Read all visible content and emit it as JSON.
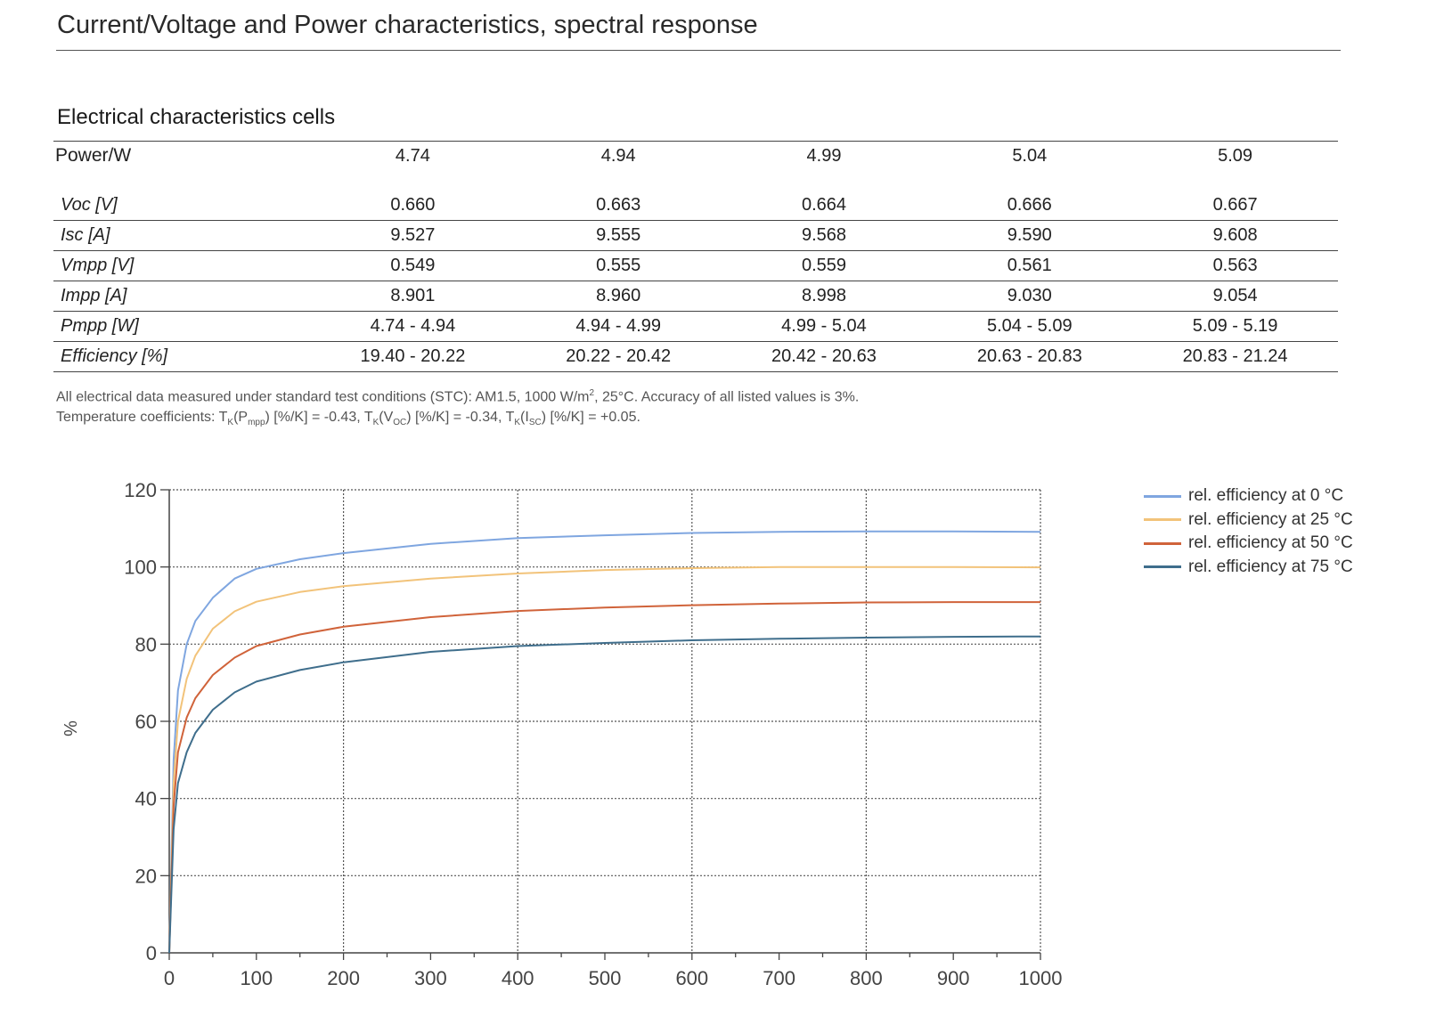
{
  "document": {
    "title": "Current/Voltage and Power characteristics, spectral response",
    "table_title": "Electrical characteristics cells"
  },
  "table": {
    "power_label": "Power/W",
    "power_values": [
      "4.74",
      "4.94",
      "4.99",
      "5.04",
      "5.09"
    ],
    "rows": [
      {
        "label": "Voc [V]",
        "values": [
          "0.660",
          "0.663",
          "0.664",
          "0.666",
          "0.667"
        ]
      },
      {
        "label": "Isc [A]",
        "values": [
          "9.527",
          "9.555",
          "9.568",
          "9.590",
          "9.608"
        ]
      },
      {
        "label": "Vmpp [V]",
        "values": [
          "0.549",
          "0.555",
          "0.559",
          "0.561",
          "0.563"
        ]
      },
      {
        "label": "Impp [A]",
        "values": [
          "8.901",
          "8.960",
          "8.998",
          "9.030",
          "9.054"
        ]
      },
      {
        "label": "Pmpp [W]",
        "values": [
          "4.74 - 4.94",
          "4.94 - 4.99",
          "4.99 - 5.04",
          "5.04 - 5.09",
          "5.09 - 5.19"
        ]
      },
      {
        "label": "Efficiency [%]",
        "values": [
          "19.40 - 20.22",
          "20.22 - 20.42",
          "20.42 - 20.63",
          "20.63 - 20.83",
          "20.83 - 21.24"
        ]
      }
    ]
  },
  "notes": {
    "stc_prefix": "All electrical data measured under standard test conditions (STC): AM1.5, 1000 W/m",
    "stc_sup": "2",
    "stc_suffix": ", 25°C. Accuracy  of all listed values is 3%.",
    "tc_prefix": "Temperature coefficients: T",
    "tc_k": "K",
    "tc_pmpp_a": "(P",
    "tc_pmpp_sub": "mpp",
    "tc_pmpp_b": ") [%/K] = -0.43, T",
    "tc_voc_a": "(V",
    "tc_voc_sub": "OC",
    "tc_voc_b": ") [%/K] = -0.34, T",
    "tc_isc_a": "(I",
    "tc_isc_sub": "SC",
    "tc_isc_b": ") [%/K] = +0.05."
  },
  "chart_data": {
    "type": "line",
    "ylabel": "%",
    "xlabel": "",
    "xlim": [
      0,
      1000
    ],
    "ylim": [
      0,
      120
    ],
    "x_ticks": [
      0,
      100,
      200,
      300,
      400,
      500,
      600,
      700,
      800,
      900,
      1000
    ],
    "y_ticks": [
      0,
      20,
      40,
      60,
      80,
      100,
      120
    ],
    "grid": true,
    "legend_position": "top-right outside",
    "series": [
      {
        "name": "rel. efficiency at 0 °C",
        "color": "#7fa6e0",
        "x": [
          0,
          5,
          10,
          20,
          30,
          50,
          75,
          100,
          150,
          200,
          300,
          400,
          500,
          600,
          700,
          800,
          900,
          1000
        ],
        "values": [
          0,
          50,
          68,
          80,
          86,
          92,
          97,
          99.5,
          102,
          103.6,
          106,
          107.5,
          108.2,
          108.8,
          109.1,
          109.2,
          109.2,
          109.1
        ]
      },
      {
        "name": "rel. efficiency at 25 °C",
        "color": "#f2c37a",
        "x": [
          0,
          5,
          10,
          20,
          30,
          50,
          75,
          100,
          150,
          200,
          300,
          400,
          500,
          600,
          700,
          800,
          900,
          1000
        ],
        "values": [
          0,
          44,
          60,
          71,
          77,
          84,
          88.5,
          91,
          93.5,
          95,
          97,
          98.3,
          99.2,
          99.7,
          100,
          100,
          100,
          99.9
        ]
      },
      {
        "name": "rel. efficiency at 50 °C",
        "color": "#d0633a",
        "x": [
          0,
          5,
          10,
          20,
          30,
          50,
          75,
          100,
          150,
          200,
          300,
          400,
          500,
          600,
          700,
          800,
          900,
          1000
        ],
        "values": [
          0,
          38,
          52,
          61,
          66,
          72,
          76.5,
          79.5,
          82.5,
          84.5,
          87,
          88.6,
          89.5,
          90.1,
          90.5,
          90.8,
          90.9,
          90.9
        ]
      },
      {
        "name": "rel. efficiency at 75 °C",
        "color": "#3f6e8c",
        "x": [
          0,
          5,
          10,
          20,
          30,
          50,
          75,
          100,
          150,
          200,
          300,
          400,
          500,
          600,
          700,
          800,
          900,
          1000
        ],
        "values": [
          0,
          32,
          44,
          52,
          57,
          63,
          67.5,
          70.3,
          73.3,
          75.3,
          78,
          79.5,
          80.3,
          81,
          81.4,
          81.7,
          81.9,
          82
        ]
      }
    ]
  }
}
